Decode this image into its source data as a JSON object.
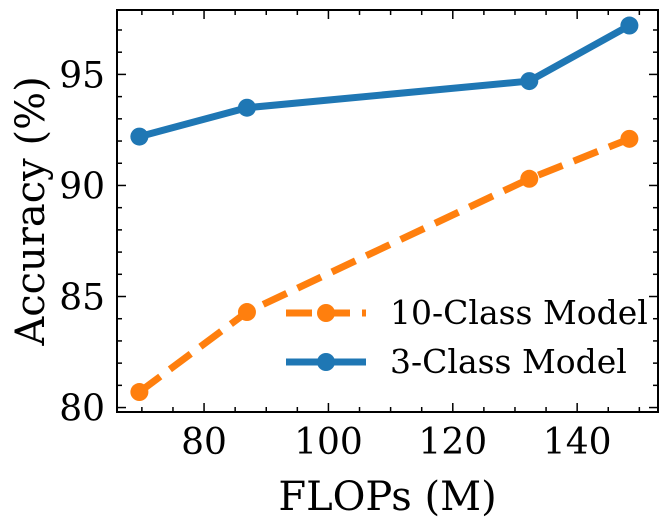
{
  "chart_data": {
    "type": "line",
    "title": "",
    "xlabel": "FLOPs (M)",
    "ylabel": "Accuracy (%)",
    "xlim": [
      66,
      153
    ],
    "ylim": [
      79.8,
      97.9
    ],
    "xticks": [
      80,
      100,
      120,
      140
    ],
    "yticks": [
      80,
      85,
      90,
      95
    ],
    "grid": false,
    "legend_position": "lower-right",
    "series": [
      {
        "name": "10-Class Model",
        "color": "#ff7f0e",
        "linestyle": "dashed",
        "x": [
          69.6,
          86.9,
          132.3,
          148.4
        ],
        "y": [
          80.7,
          84.3,
          90.3,
          92.1
        ]
      },
      {
        "name": "3-Class Model",
        "color": "#1f77b4",
        "linestyle": "solid",
        "x": [
          69.6,
          86.9,
          132.3,
          148.4
        ],
        "y": [
          92.2,
          93.5,
          94.7,
          97.2
        ]
      }
    ]
  }
}
